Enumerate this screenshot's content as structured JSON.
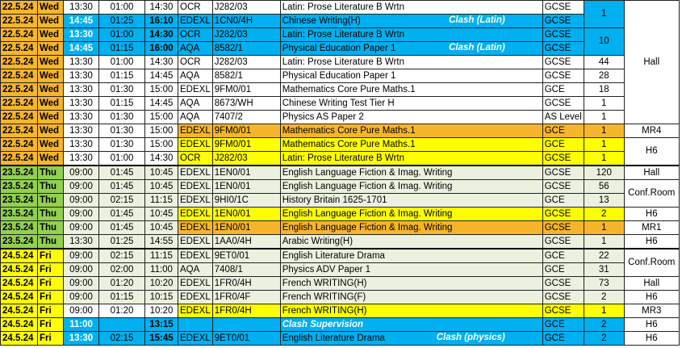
{
  "colors": {
    "orange": "#F7B52B",
    "yellow": "#FFFF00",
    "blue": "#00B0F0",
    "green": "#92D050",
    "lightgreen": "#EBF1DE",
    "lightorange": "#FCD5B4",
    "lightblue": "#DAEEF3",
    "white": "#FFFFFF"
  },
  "rows": [
    {
      "date": "22.5.24",
      "day": "Wed",
      "start": "13:30",
      "dur": "01:00",
      "end": "14:30",
      "board": "OCR",
      "code": "J282/03",
      "title": "Latin: Prose Literature B Wrtn",
      "clash": "",
      "level": "GCSE",
      "bg": "white",
      "dc": "orange"
    },
    {
      "date": "22.5.24",
      "day": "Wed",
      "start": "14:45",
      "dur": "01:25",
      "end": "16:10",
      "board": "EDEXL",
      "code": "1CN0/4H",
      "title": "Chinese Writing(H)",
      "clash": "Clash (Latin)",
      "level": "GCSE",
      "bg": "blue",
      "dc": "orange"
    },
    {
      "date": "22.5.24",
      "day": "Wed",
      "start": "13:30",
      "dur": "01:00",
      "end": "14:30",
      "board": "OCR",
      "code": "J282/03",
      "title": "Latin: Prose Literature B Wrtn",
      "clash": "",
      "level": "GCSE",
      "bg": "blue",
      "dc": "orange"
    },
    {
      "date": "22.5.24",
      "day": "Wed",
      "start": "14:45",
      "dur": "01:15",
      "end": "16:00",
      "board": "AQA",
      "code": "8582/1",
      "title": "Physical Education Paper 1",
      "clash": "Clash (Latin)",
      "level": "GCSE",
      "bg": "blue",
      "dc": "orange"
    },
    {
      "date": "22.5.24",
      "day": "Wed",
      "start": "13:30",
      "dur": "01:00",
      "end": "14:30",
      "board": "OCR",
      "code": "J282/03",
      "title": "Latin: Prose Literature B Wrtn",
      "clash": "",
      "level": "GCSE",
      "bg": "white",
      "dc": "orange",
      "count": "44"
    },
    {
      "date": "22.5.24",
      "day": "Wed",
      "start": "13:30",
      "dur": "01:15",
      "end": "14:45",
      "board": "AQA",
      "code": "8582/1",
      "title": "Physical Education Paper 1",
      "clash": "",
      "level": "GCSE",
      "bg": "white",
      "dc": "orange",
      "count": "28"
    },
    {
      "date": "22.5.24",
      "day": "Wed",
      "start": "13:30",
      "dur": "01:30",
      "end": "15:00",
      "board": "EDEXL",
      "code": "9FM0/01",
      "title": "Mathematics Core Pure Maths.1",
      "clash": "",
      "level": "GCE",
      "bg": "white",
      "dc": "orange",
      "count": "18"
    },
    {
      "date": "22.5.24",
      "day": "Wed",
      "start": "13:30",
      "dur": "01:15",
      "end": "14:45",
      "board": "AQA",
      "code": "8673/WH",
      "title": "Chinese Writing Test Tier H",
      "clash": "",
      "level": "GCSE",
      "bg": "white",
      "dc": "orange",
      "count": "1"
    },
    {
      "date": "22.5.24",
      "day": "Wed",
      "start": "13:30",
      "dur": "01:30",
      "end": "15:00",
      "board": "AQA",
      "code": "7407/2",
      "title": "Physics AS Paper 2",
      "clash": "",
      "level": "AS Level",
      "bg": "white",
      "dc": "orange",
      "count": "1"
    },
    {
      "date": "22.5.24",
      "day": "Wed",
      "start": "13:30",
      "dur": "01:30",
      "end": "15:00",
      "board": "EDEXL",
      "code": "9FM0/01",
      "title": "Mathematics Core Pure Maths.1",
      "clash": "",
      "level": "GCE",
      "bg": "orange",
      "dc": "orange",
      "count": "1"
    },
    {
      "date": "22.5.24",
      "day": "Wed",
      "start": "13:30",
      "dur": "01:30",
      "end": "15:00",
      "board": "EDEXL",
      "code": "9FM0/01",
      "title": "Mathematics Core Pure Maths.1",
      "clash": "",
      "level": "GCE",
      "bg": "yellow",
      "dc": "orange",
      "count": "1"
    },
    {
      "date": "22.5.24",
      "day": "Wed",
      "start": "13:30",
      "dur": "01:00",
      "end": "14:30",
      "board": "OCR",
      "code": "J282/03",
      "title": "Latin: Prose Literature B Wrtn",
      "clash": "",
      "level": "GCSE",
      "bg": "yellow",
      "dc": "orange",
      "count": "1"
    },
    {
      "date": "23.5.24",
      "day": "Thu",
      "start": "09:00",
      "dur": "01:45",
      "end": "10:45",
      "board": "EDEXL",
      "code": "1EN0/01",
      "title": "English Language Fiction & Imag. Writing",
      "clash": "",
      "level": "GCSE",
      "bg": "lightgreen",
      "dc": "green",
      "count": "120"
    },
    {
      "date": "23.5.24",
      "day": "Thu",
      "start": "09:00",
      "dur": "01:45",
      "end": "10:45",
      "board": "EDEXL",
      "code": "1EN0/01",
      "title": "English Language Fiction & Imag. Writing",
      "clash": "",
      "level": "GCSE",
      "bg": "lightgreen",
      "dc": "green",
      "count": "56"
    },
    {
      "date": "23.5.24",
      "day": "Thu",
      "start": "09:00",
      "dur": "02:15",
      "end": "11:15",
      "board": "EDEXL",
      "code": "9HI0/1C",
      "title": "History Britain 1625-1701",
      "clash": "",
      "level": "GCE",
      "bg": "lightgreen",
      "dc": "green",
      "count": "13"
    },
    {
      "date": "23.5.24",
      "day": "Thu",
      "start": "09:00",
      "dur": "01:45",
      "end": "10:45",
      "board": "EDEXL",
      "code": "1EN0/01",
      "title": "English Language Fiction & Imag. Writing",
      "clash": "",
      "level": "GCSE",
      "bg": "yellow",
      "dc": "green",
      "count": "2"
    },
    {
      "date": "23.5.24",
      "day": "Thu",
      "start": "09:00",
      "dur": "01:45",
      "end": "10:45",
      "board": "EDEXL",
      "code": "1EN0/01",
      "title": "English Language Fiction & Imag. Writing",
      "clash": "",
      "level": "GCSE",
      "bg": "orange",
      "dc": "green",
      "count": "1"
    },
    {
      "date": "23.5.24",
      "day": "Thu",
      "start": "13:30",
      "dur": "01:25",
      "end": "14:55",
      "board": "EDEXL",
      "code": "1AA0/4H",
      "title": "Arabic Writing(H)",
      "clash": "",
      "level": "GCSE",
      "bg": "lightgreen",
      "dc": "green",
      "count": "1"
    },
    {
      "date": "24.5.24",
      "day": "Fri",
      "start": "09:00",
      "dur": "02:15",
      "end": "11:15",
      "board": "EDEXL",
      "code": "9ET0/01",
      "title": "English Literature Drama",
      "clash": "",
      "level": "GCE",
      "bg": "lightgreen",
      "dc": "yellow",
      "count": "22"
    },
    {
      "date": "24.5.24",
      "day": "Fri",
      "start": "09:00",
      "dur": "02:00",
      "end": "11:00",
      "board": "AQA",
      "code": "7408/1",
      "title": "Physics ADV Paper 1",
      "clash": "",
      "level": "GCE",
      "bg": "lightgreen",
      "dc": "yellow",
      "count": "31"
    },
    {
      "date": "24.5.24",
      "day": "Fri",
      "start": "09:00",
      "dur": "01:20",
      "end": "10:20",
      "board": "EDEXL",
      "code": "1FR0/4H",
      "title": "French WRITING(H)",
      "clash": "",
      "level": "GCSE",
      "bg": "lightgreen",
      "dc": "yellow",
      "count": "73"
    },
    {
      "date": "24.5.24",
      "day": "Fri",
      "start": "09:00",
      "dur": "01:15",
      "end": "10:15",
      "board": "EDEXL",
      "code": "1FR0/4F",
      "title": "French WRITING(F)",
      "clash": "",
      "level": "GCSE",
      "bg": "lightgreen",
      "dc": "yellow",
      "count": "2"
    },
    {
      "date": "24.5.24",
      "day": "Fri",
      "start": "09:00",
      "dur": "01:20",
      "end": "10:20",
      "board": "EDEXL",
      "code": "1FR0/4H",
      "title": "French WRITING(H)",
      "clash": "",
      "level": "GCSE",
      "bg": "yellow",
      "dc": "yellow",
      "count": "1"
    },
    {
      "date": "24.5.24",
      "day": "Fri",
      "start": "11:00",
      "dur": "",
      "end": "13:15",
      "board": "",
      "code": "",
      "title": "Clash Supervision",
      "clash": "",
      "level": "GCE",
      "bg": "blue",
      "dc": "yellow",
      "count": "2",
      "special": true
    },
    {
      "date": "24.5.24",
      "day": "Fri",
      "start": "13:30",
      "dur": "02:15",
      "end": "15:45",
      "board": "EDEXL",
      "code": "9ET0/01",
      "title": "English Literature Drama",
      "clash": "Clash (physics)",
      "level": "GCE",
      "bg": "blue",
      "dc": "yellow",
      "count": "2"
    }
  ],
  "blue_counts": {
    "a": "1",
    "b": "10"
  },
  "rooms": {
    "hall_wed": "Hall",
    "mr4": "MR4",
    "h6_wed": "H6",
    "hall_thu": "Hall",
    "conf_thu": "Conf.Room",
    "h6_thu": "H6",
    "mr1": "MR1",
    "h6_thu2": "H6",
    "conf_fri": "Conf.Room",
    "hall_fri": "Hall",
    "h6_fri": "H6",
    "mr3": "MR3",
    "h6_fri2": "H6",
    "h6_fri3": "H6"
  }
}
